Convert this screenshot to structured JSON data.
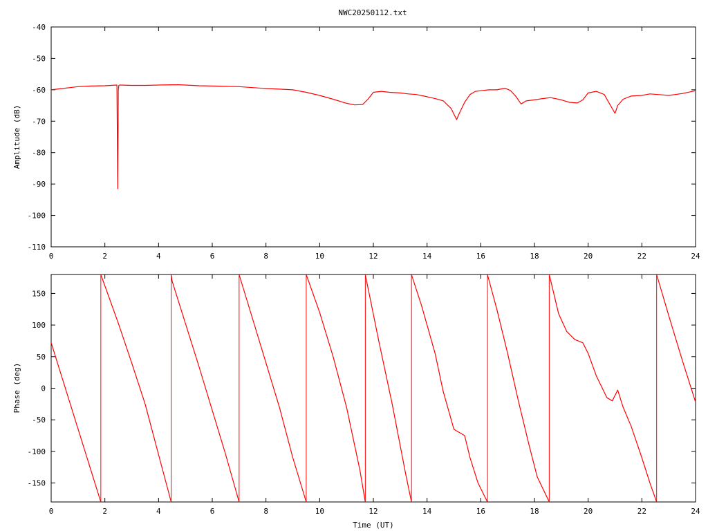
{
  "title": "NWC20250112.txt",
  "colors": {
    "trace": "#ff0000",
    "axis": "#000000",
    "background": "#ffffff"
  },
  "chart_data": [
    {
      "type": "line",
      "title": "NWC20250112.txt",
      "xlabel": "",
      "ylabel": "Amplitude (dB)",
      "xlim": [
        0,
        24
      ],
      "ylim": [
        -110,
        -40
      ],
      "xticks": [
        "0",
        "2",
        "4",
        "6",
        "8",
        "10",
        "12",
        "14",
        "16",
        "18",
        "20",
        "22",
        "24"
      ],
      "yticks": [
        "-40",
        "-50",
        "-60",
        "-70",
        "-80",
        "-90",
        "-100",
        "-110"
      ],
      "grid": false,
      "series": [
        {
          "x": [
            0,
            0.5,
            1,
            1.5,
            2,
            2.45,
            2.48,
            2.5,
            2.52,
            2.55,
            3,
            3.5,
            4,
            4.5,
            4.8,
            5,
            5.5,
            6,
            6.5,
            7,
            7.5,
            8,
            8.5,
            9,
            9.5,
            10,
            10.5,
            11,
            11.3,
            11.6,
            11.8,
            12,
            12.3,
            12.6,
            13,
            13.3,
            13.6,
            14,
            14.3,
            14.6,
            14.9,
            15.1,
            15.2,
            15.4,
            15.6,
            15.8,
            16,
            16.3,
            16.6,
            16.9,
            17.1,
            17.3,
            17.5,
            17.7,
            18,
            18.3,
            18.6,
            19,
            19.3,
            19.6,
            19.8,
            20,
            20.3,
            20.6,
            20.8,
            21,
            21.1,
            21.3,
            21.6,
            22,
            22.3,
            22.6,
            23,
            23.5,
            24
          ],
          "y": [
            -60,
            -59.5,
            -59,
            -58.8,
            -58.7,
            -58.5,
            -91.5,
            -60,
            -58.6,
            -58.5,
            -58.6,
            -58.6,
            -58.5,
            -58.4,
            -58.4,
            -58.5,
            -58.7,
            -58.8,
            -58.9,
            -59,
            -59.3,
            -59.6,
            -59.8,
            -60,
            -60.8,
            -61.8,
            -63,
            -64.3,
            -64.8,
            -64.7,
            -63,
            -60.8,
            -60.5,
            -60.8,
            -61,
            -61.3,
            -61.5,
            -62.2,
            -62.8,
            -63.5,
            -66,
            -69.5,
            -67.5,
            -64,
            -61.5,
            -60.5,
            -60.3,
            -60,
            -60,
            -59.5,
            -60.2,
            -62,
            -64.5,
            -63.5,
            -63.2,
            -62.8,
            -62.5,
            -63.2,
            -64,
            -64.2,
            -63.2,
            -61,
            -60.5,
            -61.5,
            -64.5,
            -67.5,
            -65,
            -63,
            -62,
            -61.8,
            -61.3,
            -61.5,
            -61.8,
            -61.2,
            -60.3
          ]
        }
      ]
    },
    {
      "type": "line",
      "xlabel": "Time (UT)",
      "ylabel": "Phase (deg)",
      "xlim": [
        0,
        24
      ],
      "ylim": [
        -180,
        180
      ],
      "xticks": [
        "0",
        "2",
        "4",
        "6",
        "8",
        "10",
        "12",
        "14",
        "16",
        "18",
        "20",
        "22",
        "24"
      ],
      "yticks": [
        "150",
        "100",
        "50",
        "0",
        "-50",
        "-100",
        "-150"
      ],
      "grid": false,
      "series": [
        {
          "x": [
            0,
            1.85
          ],
          "y": [
            72,
            -180
          ]
        },
        {
          "x": [
            1.85,
            2.5,
            3,
            3.5,
            4,
            4.47
          ],
          "y": [
            180,
            103,
            40,
            -25,
            -105,
            -180
          ]
        },
        {
          "x": [
            4.47,
            4.5,
            5.5,
            6.5,
            7
          ],
          "y": [
            180,
            170,
            35,
            -105,
            -180
          ]
        },
        {
          "x": [
            7,
            7.5,
            8,
            8.5,
            9,
            9.5
          ],
          "y": [
            180,
            110,
            40,
            -30,
            -110,
            -180
          ]
        },
        {
          "x": [
            9.5,
            10,
            10.5,
            11,
            11.5,
            11.7
          ],
          "y": [
            180,
            120,
            50,
            -30,
            -130,
            -180
          ]
        },
        {
          "x": [
            11.7,
            12.2,
            12.7,
            13.2,
            13.42
          ],
          "y": [
            180,
            75,
            -25,
            -135,
            -180
          ]
        },
        {
          "x": [
            13.42,
            13.8,
            14.3,
            14.6,
            15,
            15.2,
            15.4,
            15.6,
            15.9,
            16.25
          ],
          "y": [
            180,
            130,
            55,
            -5,
            -65,
            -70,
            -75,
            -110,
            -150,
            -180
          ]
        },
        {
          "x": [
            16.25,
            16.6,
            17,
            17.4,
            17.8,
            18.1,
            18.55
          ],
          "y": [
            180,
            125,
            55,
            -20,
            -90,
            -140,
            -180
          ]
        },
        {
          "x": [
            18.55,
            18.9,
            19.2,
            19.5,
            19.8,
            20,
            20.3,
            20.7,
            20.9,
            21.1,
            21.3,
            21.6,
            22,
            22.3,
            22.55
          ],
          "y": [
            180,
            118,
            90,
            77,
            72,
            55,
            20,
            -15,
            -20,
            -3,
            -30,
            -60,
            -110,
            -150,
            -180
          ]
        },
        {
          "x": [
            22.55,
            23,
            23.5,
            24
          ],
          "y": [
            180,
            115,
            45,
            -22
          ]
        }
      ]
    }
  ]
}
